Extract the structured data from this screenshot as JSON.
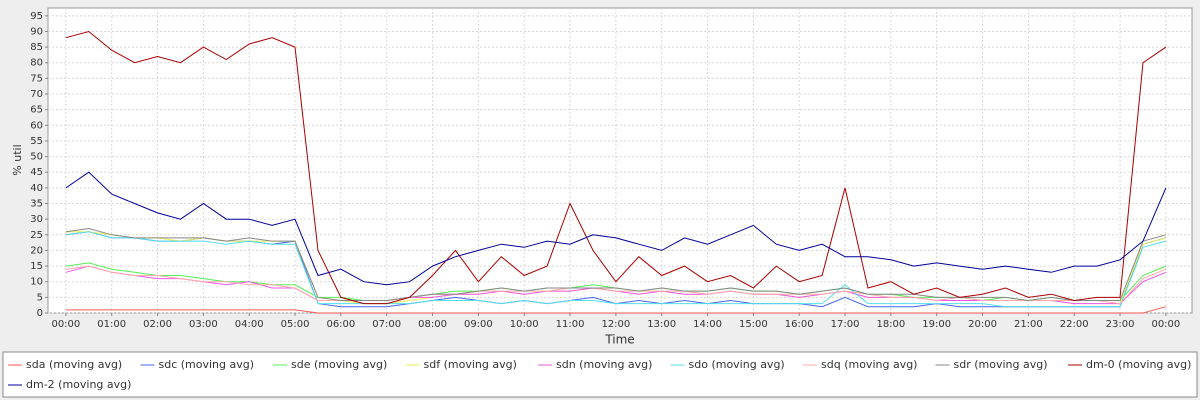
{
  "chart_data": {
    "type": "line",
    "xlabel": "Time",
    "ylabel": "% util",
    "x": [
      0,
      0.5,
      1,
      1.5,
      2,
      2.5,
      3,
      3.5,
      4,
      4.5,
      5,
      5.5,
      6,
      6.5,
      7,
      7.5,
      8,
      8.5,
      9,
      9.5,
      10,
      10.5,
      11,
      11.5,
      12,
      12.5,
      13,
      13.5,
      14,
      14.5,
      15,
      15.5,
      16,
      16.5,
      17,
      17.5,
      18,
      18.5,
      19,
      19.5,
      20,
      20.5,
      21,
      21.5,
      22,
      22.5,
      23,
      23.5,
      24
    ],
    "xlim": [
      -0.39,
      24.57
    ],
    "xticks": [
      {
        "value": 0,
        "label": "00:00"
      },
      {
        "value": 1,
        "label": "01:00"
      },
      {
        "value": 2,
        "label": "02:00"
      },
      {
        "value": 3,
        "label": "03:00"
      },
      {
        "value": 4,
        "label": "04:00"
      },
      {
        "value": 5,
        "label": "05:00"
      },
      {
        "value": 6,
        "label": "06:00"
      },
      {
        "value": 7,
        "label": "07:00"
      },
      {
        "value": 8,
        "label": "08:00"
      },
      {
        "value": 9,
        "label": "09:00"
      },
      {
        "value": 10,
        "label": "10:00"
      },
      {
        "value": 11,
        "label": "11:00"
      },
      {
        "value": 12,
        "label": "12:00"
      },
      {
        "value": 13,
        "label": "13:00"
      },
      {
        "value": 14,
        "label": "14:00"
      },
      {
        "value": 15,
        "label": "15:00"
      },
      {
        "value": 16,
        "label": "16:00"
      },
      {
        "value": 17,
        "label": "17:00"
      },
      {
        "value": 18,
        "label": "18:00"
      },
      {
        "value": 19,
        "label": "19:00"
      },
      {
        "value": 20,
        "label": "20:00"
      },
      {
        "value": 21,
        "label": "21:00"
      },
      {
        "value": 22,
        "label": "22:00"
      },
      {
        "value": 23,
        "label": "23:00"
      },
      {
        "value": 24,
        "label": "00:00"
      }
    ],
    "ylim": [
      0,
      97.5
    ],
    "yticks": [
      0,
      5,
      10,
      15,
      20,
      25,
      30,
      35,
      40,
      45,
      50,
      55,
      60,
      65,
      70,
      75,
      80,
      85,
      90,
      95
    ],
    "grid": true,
    "legend": "bottom",
    "series": [
      {
        "name": "sda (moving avg)",
        "color": "#ff5555",
        "values": [
          1,
          1,
          1,
          1,
          1,
          1,
          1,
          1,
          1,
          1,
          1,
          0,
          0,
          0,
          0,
          0,
          0,
          0,
          0,
          0,
          0,
          0,
          0,
          0,
          0,
          0,
          0,
          0,
          0,
          0,
          0,
          0,
          0,
          0,
          0,
          0,
          0,
          0,
          0,
          0,
          0,
          0,
          0,
          0,
          0,
          0,
          0,
          0,
          2
        ]
      },
      {
        "name": "sdc (moving avg)",
        "color": "#4466ee",
        "values": [
          25,
          26,
          24,
          24,
          23,
          23,
          24,
          23,
          23,
          22,
          23,
          3,
          2,
          2,
          2,
          3,
          4,
          5,
          4,
          3,
          4,
          3,
          4,
          5,
          3,
          4,
          3,
          4,
          3,
          4,
          3,
          3,
          3,
          2,
          5,
          2,
          2,
          2,
          3,
          2,
          2,
          2,
          2,
          2,
          2,
          2,
          2,
          22,
          24
        ]
      },
      {
        "name": "sde (moving avg)",
        "color": "#55ee55",
        "values": [
          15,
          16,
          14,
          13,
          12,
          12,
          11,
          10,
          10,
          9,
          9,
          5,
          5,
          4,
          4,
          5,
          6,
          7,
          7,
          8,
          7,
          8,
          8,
          9,
          8,
          7,
          8,
          7,
          7,
          8,
          7,
          7,
          6,
          7,
          8,
          6,
          6,
          5,
          5,
          5,
          4,
          5,
          4,
          5,
          4,
          4,
          4,
          12,
          15
        ]
      },
      {
        "name": "sdf (moving avg)",
        "color": "#eeee55",
        "values": [
          26,
          26,
          25,
          24,
          24,
          23,
          24,
          23,
          23,
          23,
          23,
          5,
          4,
          3,
          3,
          4,
          5,
          6,
          6,
          7,
          6,
          7,
          7,
          8,
          7,
          6,
          7,
          6,
          6,
          7,
          6,
          6,
          5,
          6,
          7,
          5,
          5,
          5,
          4,
          4,
          4,
          4,
          4,
          4,
          3,
          3,
          3,
          22,
          24
        ]
      },
      {
        "name": "sdn (moving avg)",
        "color": "#ee55ee",
        "values": [
          13,
          15,
          13,
          12,
          11,
          11,
          10,
          9,
          10,
          8,
          8,
          4,
          4,
          4,
          4,
          5,
          5,
          6,
          6,
          7,
          6,
          7,
          7,
          8,
          7,
          6,
          7,
          6,
          6,
          7,
          6,
          6,
          5,
          6,
          7,
          5,
          5,
          5,
          4,
          4,
          4,
          4,
          4,
          4,
          3,
          3,
          3,
          10,
          13
        ]
      },
      {
        "name": "sdo (moving avg)",
        "color": "#55ddee",
        "values": [
          25,
          26,
          24,
          24,
          23,
          23,
          23,
          22,
          23,
          22,
          22,
          3,
          3,
          3,
          3,
          3,
          4,
          4,
          4,
          3,
          4,
          3,
          4,
          4,
          3,
          3,
          3,
          3,
          3,
          3,
          3,
          3,
          3,
          3,
          9,
          3,
          3,
          3,
          3,
          3,
          3,
          2,
          2,
          2,
          2,
          2,
          2,
          21,
          23
        ]
      },
      {
        "name": "sdq (moving avg)",
        "color": "#ffaaaa",
        "values": [
          14,
          15,
          13,
          12,
          12,
          11,
          10,
          10,
          9,
          9,
          8,
          4,
          4,
          4,
          4,
          5,
          6,
          6,
          7,
          7,
          7,
          7,
          8,
          8,
          7,
          7,
          7,
          7,
          6,
          7,
          6,
          6,
          6,
          6,
          7,
          6,
          5,
          5,
          4,
          5,
          4,
          4,
          4,
          4,
          4,
          4,
          3,
          11,
          14
        ]
      },
      {
        "name": "sdr (moving avg)",
        "color": "#888888",
        "values": [
          26,
          27,
          25,
          24,
          24,
          24,
          24,
          23,
          24,
          23,
          23,
          5,
          4,
          4,
          4,
          5,
          6,
          6,
          7,
          8,
          7,
          8,
          8,
          8,
          8,
          7,
          8,
          7,
          7,
          8,
          7,
          7,
          6,
          7,
          8,
          6,
          6,
          6,
          5,
          5,
          5,
          5,
          4,
          5,
          4,
          4,
          4,
          23,
          25
        ]
      },
      {
        "name": "dm-0 (moving avg)",
        "color": "#aa0000",
        "values": [
          88,
          90,
          84,
          80,
          82,
          80,
          85,
          81,
          86,
          88,
          85,
          20,
          5,
          3,
          3,
          5,
          12,
          20,
          10,
          18,
          12,
          15,
          35,
          20,
          10,
          18,
          12,
          15,
          10,
          12,
          8,
          15,
          10,
          12,
          40,
          8,
          10,
          6,
          8,
          5,
          6,
          8,
          5,
          6,
          4,
          5,
          5,
          80,
          85
        ]
      },
      {
        "name": "dm-2 (moving avg)",
        "color": "#000099",
        "values": [
          40,
          45,
          38,
          35,
          32,
          30,
          35,
          30,
          30,
          28,
          30,
          12,
          14,
          10,
          9,
          10,
          15,
          18,
          20,
          22,
          21,
          23,
          22,
          25,
          24,
          22,
          20,
          24,
          22,
          25,
          28,
          22,
          20,
          22,
          18,
          18,
          17,
          15,
          16,
          15,
          14,
          15,
          14,
          13,
          15,
          15,
          17,
          23,
          40
        ]
      }
    ]
  }
}
